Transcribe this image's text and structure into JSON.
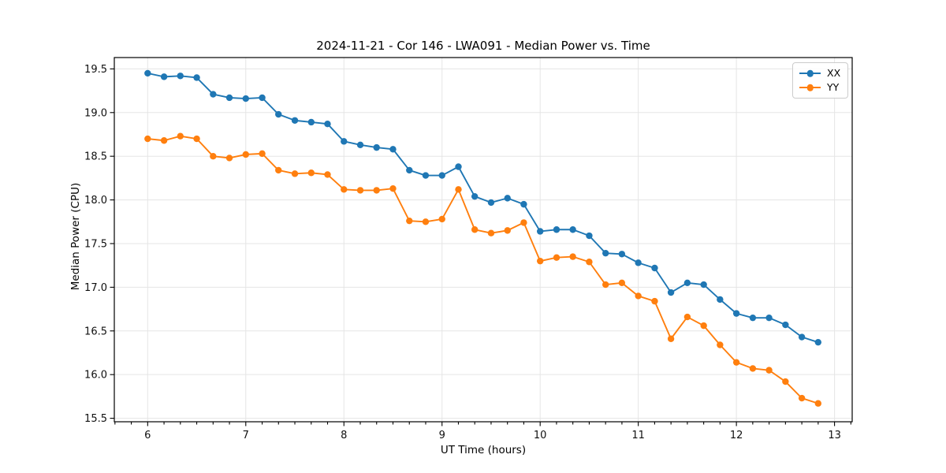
{
  "background": "#ffffff",
  "chart_data": {
    "type": "line",
    "title": "2024-11-21 - Cor 146 - LWA091 - Median Power vs. Time",
    "xlabel": "UT Time (hours)",
    "ylabel": "Median Power (CPU)",
    "grid": true,
    "legend_position": "upper right",
    "xlim": [
      5.66,
      13.18
    ],
    "ylim": [
      15.46,
      19.63
    ],
    "xticks": [
      6,
      7,
      8,
      9,
      10,
      11,
      12,
      13
    ],
    "yticks": [
      15.5,
      16.0,
      16.5,
      17.0,
      17.5,
      18.0,
      18.5,
      19.0,
      19.5
    ],
    "x_minor_step_hours": 0.1667,
    "x": [
      6.0,
      6.167,
      6.333,
      6.5,
      6.667,
      6.833,
      7.0,
      7.167,
      7.333,
      7.5,
      7.667,
      7.833,
      8.0,
      8.167,
      8.333,
      8.5,
      8.667,
      8.833,
      9.0,
      9.167,
      9.333,
      9.5,
      9.667,
      9.833,
      10.0,
      10.167,
      10.333,
      10.5,
      10.667,
      10.833,
      11.0,
      11.167,
      11.333,
      11.5,
      11.667,
      11.833,
      12.0,
      12.167,
      12.333,
      12.5,
      12.667,
      12.833
    ],
    "series": [
      {
        "name": "XX",
        "color": "#1f77b4",
        "values": [
          19.45,
          19.41,
          19.42,
          19.4,
          19.21,
          19.17,
          19.16,
          19.17,
          18.98,
          18.91,
          18.89,
          18.87,
          18.67,
          18.63,
          18.6,
          18.58,
          18.34,
          18.28,
          18.28,
          18.38,
          18.04,
          17.97,
          18.02,
          17.95,
          17.64,
          17.66,
          17.66,
          17.59,
          17.39,
          17.38,
          17.28,
          17.22,
          16.94,
          17.05,
          17.03,
          16.86,
          16.7,
          16.65,
          16.65,
          16.57,
          16.43,
          16.37
        ]
      },
      {
        "name": "YY",
        "color": "#ff7f0e",
        "values": [
          18.7,
          18.68,
          18.73,
          18.7,
          18.5,
          18.48,
          18.52,
          18.53,
          18.34,
          18.3,
          18.31,
          18.29,
          18.12,
          18.11,
          18.11,
          18.13,
          17.76,
          17.75,
          17.78,
          18.12,
          17.66,
          17.62,
          17.65,
          17.74,
          17.3,
          17.34,
          17.35,
          17.29,
          17.03,
          17.05,
          16.9,
          16.84,
          16.41,
          16.66,
          16.56,
          16.34,
          16.14,
          16.07,
          16.05,
          15.92,
          15.73,
          15.67
        ]
      }
    ]
  }
}
